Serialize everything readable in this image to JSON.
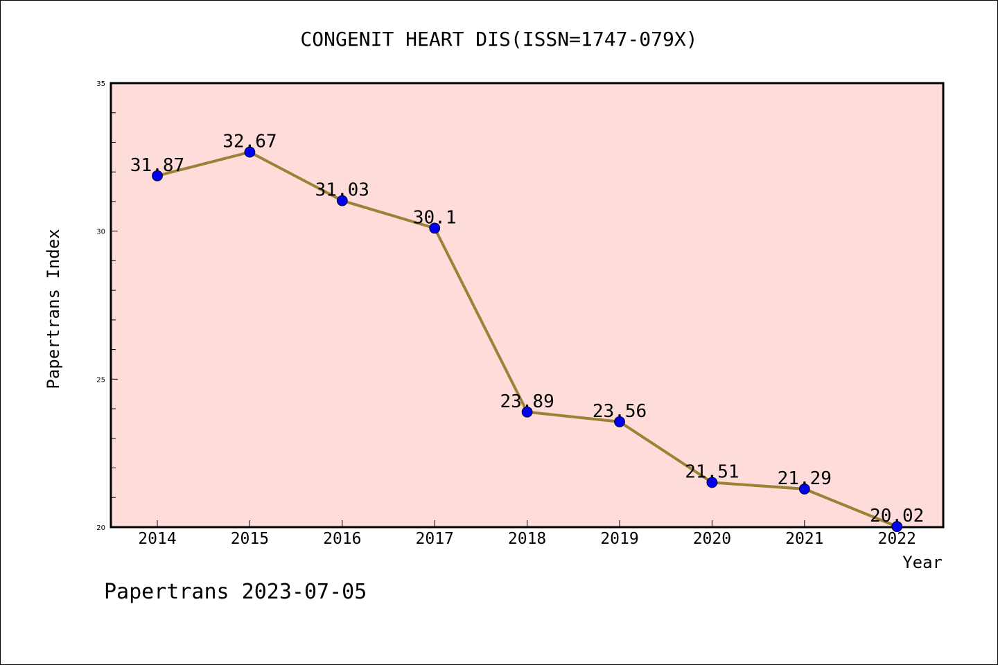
{
  "chart_data": {
    "type": "line",
    "title": "CONGENIT HEART DIS(ISSN=1747-079X)",
    "xlabel": "Year",
    "ylabel": "Papertrans Index",
    "categories": [
      "2014",
      "2015",
      "2016",
      "2017",
      "2018",
      "2019",
      "2020",
      "2021",
      "2022"
    ],
    "series": [
      {
        "values": [
          31.87,
          32.67,
          31.03,
          30.1,
          23.89,
          23.56,
          21.51,
          21.29,
          20.02
        ]
      }
    ],
    "data_labels": [
      "31.87",
      "32.67",
      "31.03",
      "30.1",
      "23.89",
      "23.56",
      "21.51",
      "21.29",
      "20.02"
    ],
    "ylim": [
      20,
      35
    ],
    "y_ticks": [
      "20",
      "25",
      "30",
      "35"
    ],
    "y_tick_values": [
      20,
      25,
      30,
      35
    ],
    "y_minor_step": 1,
    "grid": false,
    "legend": "none",
    "colors": {
      "plot_background": "#fddcd9",
      "line": "#9b8236",
      "marker": "#0000ee"
    }
  },
  "footer": {
    "text": "Papertrans 2023-07-05"
  }
}
